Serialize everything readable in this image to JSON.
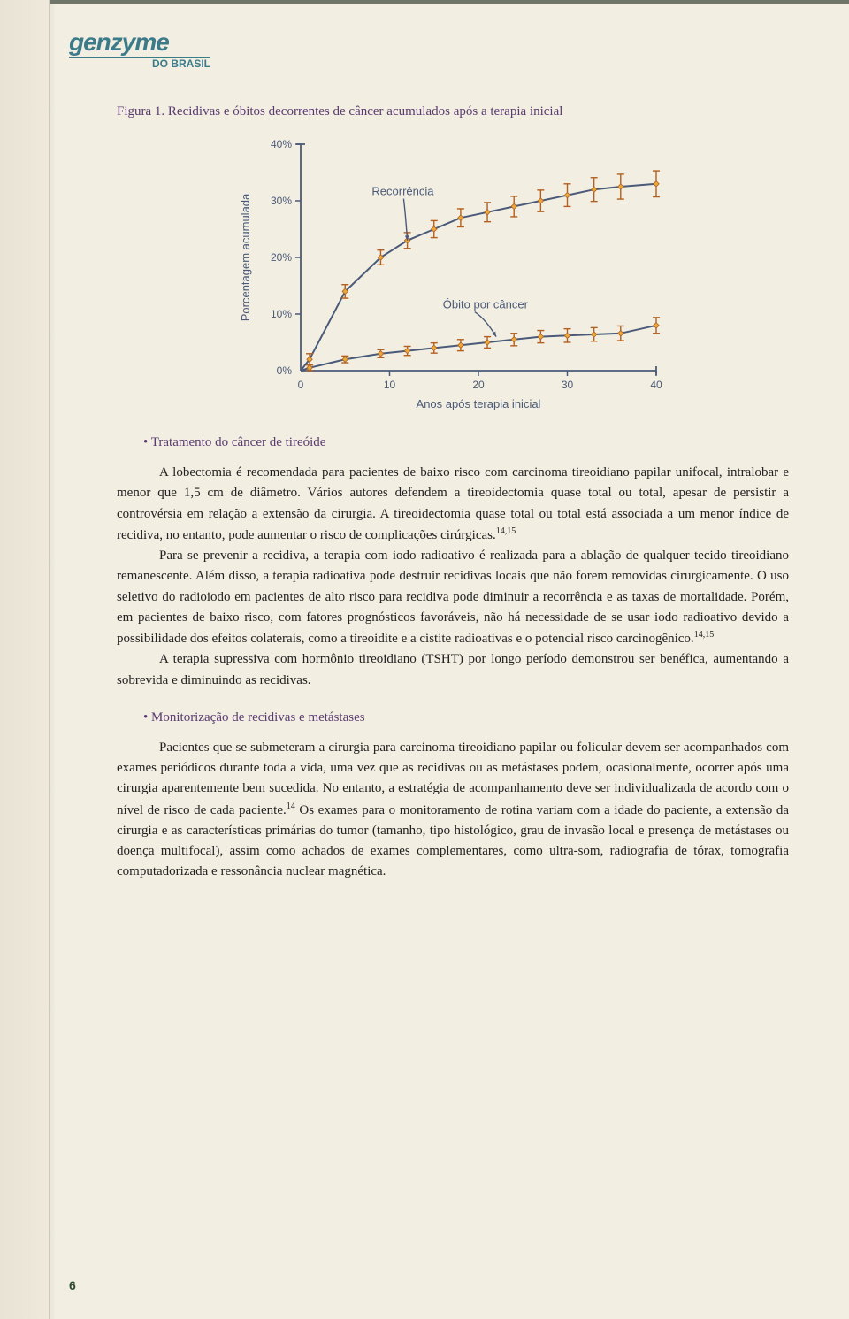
{
  "logo": {
    "main": "genzyme",
    "sub": "DO BRASIL"
  },
  "figure": {
    "title": "Figura 1. Recidivas e óbitos decorrentes de câncer acumulados após a terapia inicial",
    "title_color": "#5a3a71",
    "title_fontsize": 15
  },
  "chart": {
    "type": "line",
    "ylabel": "Porcentagem acumulada",
    "xlabel": "Anos após terapia inicial",
    "ylim": [
      0,
      40
    ],
    "ytick_step": 10,
    "xlim": [
      0,
      40
    ],
    "xtick_step": 10,
    "yticks": [
      "0%",
      "10%",
      "20%",
      "30%",
      "40%"
    ],
    "xticks": [
      "0",
      "10",
      "20",
      "30",
      "40"
    ],
    "label_fontsize": 13,
    "tick_fontsize": 12,
    "axis_color": "#4a5a78",
    "series": [
      {
        "name": "Recorrência",
        "label_pos": {
          "x": 8,
          "y": 31
        },
        "arrow_to": {
          "x": 12,
          "y": 23
        },
        "color_line": "#4a5a78",
        "color_marker": "#e8a93a",
        "color_marker_border": "#b25f1f",
        "marker_style": "error-point",
        "line_width": 2,
        "x": [
          0,
          1,
          5,
          9,
          12,
          15,
          18,
          21,
          24,
          27,
          30,
          33,
          36,
          40
        ],
        "y": [
          0,
          2,
          14,
          20,
          23,
          25,
          27,
          28,
          29,
          30,
          31,
          32,
          32.5,
          33
        ],
        "err": [
          0,
          1,
          1.2,
          1.3,
          1.4,
          1.5,
          1.6,
          1.7,
          1.8,
          1.9,
          2.0,
          2.1,
          2.2,
          2.3
        ]
      },
      {
        "name": "Óbito por câncer",
        "label_pos": {
          "x": 16,
          "y": 11
        },
        "arrow_to": {
          "x": 22,
          "y": 6
        },
        "color_line": "#4a5a78",
        "color_marker": "#e8a93a",
        "color_marker_border": "#b25f1f",
        "marker_style": "error-point",
        "line_width": 2,
        "x": [
          0,
          1,
          5,
          9,
          12,
          15,
          18,
          21,
          24,
          27,
          30,
          33,
          36,
          40
        ],
        "y": [
          0,
          0.5,
          2,
          3,
          3.5,
          4,
          4.5,
          5,
          5.5,
          6,
          6.2,
          6.4,
          6.6,
          8
        ],
        "err": [
          0,
          0.5,
          0.6,
          0.7,
          0.8,
          0.9,
          1.0,
          1.0,
          1.1,
          1.1,
          1.2,
          1.2,
          1.3,
          1.4
        ]
      }
    ],
    "background_color": "transparent",
    "font_family": "Arial"
  },
  "bullets": {
    "0": "Tratamento do câncer de tireóide",
    "1": "Monitorização de recidivas e metástases"
  },
  "paragraphs": {
    "p1": "A lobectomia é recomendada para pacientes de baixo risco com carcinoma tireoidiano papilar unifocal, intralobar e menor que 1,5 cm de diâmetro. Vários autores defendem a tireoidectomia quase total ou total, apesar de persistir a controvérsia em relação a extensão da cirurgia. A tireoidectomia quase total ou total está associada a um menor índice de recidiva, no entanto, pode aumentar o risco de complicações cirúrgicas.",
    "p1_sup": "14,15",
    "p2a": "Para se prevenir a recidiva, a terapia com iodo radioativo é realizada para a ablação de qualquer tecido tireoidiano remanescente. Além disso, a terapia radioativa pode destruir recidivas locais que não forem removidas cirurgicamente. O uso seletivo do radioiodo em pacientes de alto risco para recidiva pode diminuir a recorrência e as taxas de mortalidade. Porém, em pacientes de baixo risco, com fatores prognósticos favoráveis, não há necessidade de se usar iodo radioativo devido a possibilidade dos efeitos colaterais, como a tireoidite e a cistite radioativas e o potencial risco carcinogênico.",
    "p2_sup": "14,15",
    "p3": "A terapia supressiva com hormônio tireoidiano (TSHT) por longo período demonstrou ser benéfica, aumentando a sobrevida e diminuindo as recidivas.",
    "p4a": "Pacientes que se submeteram a cirurgia para carcinoma tireoidiano papilar ou folicular devem ser acompanhados com exames periódicos durante toda a vida, uma vez que as recidivas ou as metástases podem, ocasionalmente, ocorrer após uma cirurgia aparentemente bem sucedida. No entanto, a estratégia de acompanhamento deve ser individualizada de acordo com o nível de risco de cada paciente.",
    "p4_sup": "14",
    "p4b": " Os exames para o monitoramento de rotina variam com a idade do paciente, a extensão da cirurgia e as características primárias do tumor (tamanho, tipo histológico, grau de invasão local e presença de metástases ou doença multifocal), assim como achados de exames complementares, como ultra-som, radiografia de tórax, tomografia computadorizada e ressonância nuclear magnética."
  },
  "pagenum": "6"
}
